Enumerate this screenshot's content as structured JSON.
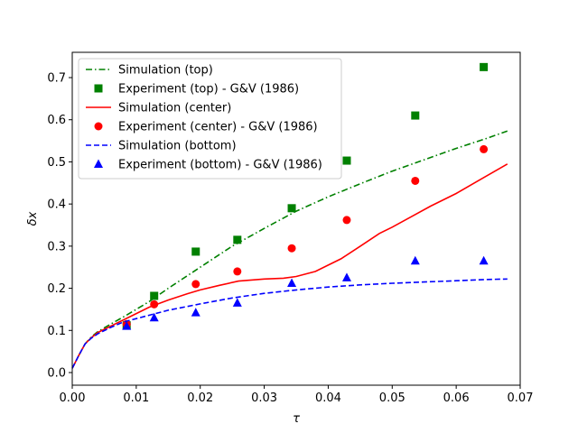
{
  "chart_data": {
    "type": "line",
    "title": "",
    "xlabel": "τ",
    "ylabel": "δx",
    "xlim": [
      0.0,
      0.07
    ],
    "ylim": [
      -0.03,
      0.76
    ],
    "x_ticks": [
      0.0,
      0.01,
      0.02,
      0.03,
      0.04,
      0.05,
      0.06,
      0.07
    ],
    "x_tick_labels": [
      "0.00",
      "0.01",
      "0.02",
      "0.03",
      "0.04",
      "0.05",
      "0.06",
      "0.07"
    ],
    "y_ticks": [
      0.0,
      0.1,
      0.2,
      0.3,
      0.4,
      0.5,
      0.6,
      0.7
    ],
    "y_tick_labels": [
      "0.0",
      "0.1",
      "0.2",
      "0.3",
      "0.4",
      "0.5",
      "0.6",
      "0.7"
    ],
    "grid": false,
    "legend_position": "top-left",
    "series": [
      {
        "name": "Simulation (top)",
        "kind": "line",
        "style": "dashdot",
        "color": "#008000",
        "x": [
          0.0,
          0.001,
          0.002,
          0.003,
          0.004,
          0.006,
          0.008,
          0.01,
          0.012,
          0.015,
          0.018,
          0.02,
          0.025,
          0.03,
          0.035,
          0.04,
          0.045,
          0.05,
          0.055,
          0.06,
          0.065,
          0.068
        ],
        "y": [
          0.01,
          0.04,
          0.068,
          0.085,
          0.097,
          0.115,
          0.132,
          0.15,
          0.168,
          0.2,
          0.23,
          0.25,
          0.3,
          0.342,
          0.383,
          0.417,
          0.448,
          0.478,
          0.505,
          0.532,
          0.557,
          0.573
        ]
      },
      {
        "name": "Experiment (top) - G&V (1986)",
        "kind": "scatter",
        "marker": "square",
        "color": "#008000",
        "x": [
          0.0085,
          0.0128,
          0.0193,
          0.0258,
          0.0343,
          0.0429,
          0.0536,
          0.0643
        ],
        "y": [
          0.112,
          0.182,
          0.287,
          0.315,
          0.39,
          0.503,
          0.61,
          0.725
        ]
      },
      {
        "name": "Simulation (center)",
        "kind": "line",
        "style": "solid",
        "color": "#ff0000",
        "x": [
          0.0,
          0.001,
          0.002,
          0.003,
          0.004,
          0.006,
          0.008,
          0.01,
          0.012,
          0.015,
          0.018,
          0.02,
          0.023,
          0.026,
          0.03,
          0.033,
          0.035,
          0.038,
          0.04,
          0.042,
          0.045,
          0.048,
          0.05,
          0.053,
          0.056,
          0.06,
          0.064,
          0.068
        ],
        "y": [
          0.01,
          0.04,
          0.068,
          0.083,
          0.095,
          0.11,
          0.125,
          0.14,
          0.155,
          0.172,
          0.187,
          0.196,
          0.207,
          0.217,
          0.222,
          0.224,
          0.228,
          0.24,
          0.255,
          0.27,
          0.3,
          0.33,
          0.345,
          0.37,
          0.395,
          0.425,
          0.46,
          0.495
        ]
      },
      {
        "name": "Experiment (center) - G&V (1986)",
        "kind": "scatter",
        "marker": "circle",
        "color": "#ff0000",
        "x": [
          0.0085,
          0.0128,
          0.0193,
          0.0258,
          0.0343,
          0.0429,
          0.0536,
          0.0643
        ],
        "y": [
          0.115,
          0.162,
          0.21,
          0.24,
          0.295,
          0.362,
          0.455,
          0.53
        ]
      },
      {
        "name": "Simulation (bottom)",
        "kind": "line",
        "style": "dashed",
        "color": "#0000ff",
        "x": [
          0.0,
          0.001,
          0.002,
          0.003,
          0.004,
          0.006,
          0.008,
          0.01,
          0.012,
          0.015,
          0.018,
          0.02,
          0.025,
          0.03,
          0.035,
          0.04,
          0.045,
          0.05,
          0.055,
          0.06,
          0.065,
          0.068
        ],
        "y": [
          0.01,
          0.04,
          0.068,
          0.082,
          0.092,
          0.107,
          0.12,
          0.128,
          0.136,
          0.148,
          0.157,
          0.163,
          0.177,
          0.188,
          0.196,
          0.203,
          0.208,
          0.212,
          0.215,
          0.218,
          0.221,
          0.222
        ]
      },
      {
        "name": "Experiment (bottom) - G&V (1986)",
        "kind": "scatter",
        "marker": "triangle",
        "color": "#0000ff",
        "x": [
          0.0085,
          0.0128,
          0.0193,
          0.0258,
          0.0343,
          0.0429,
          0.0536,
          0.0643
        ],
        "y": [
          0.11,
          0.13,
          0.142,
          0.165,
          0.212,
          0.225,
          0.265,
          0.265
        ]
      }
    ]
  }
}
